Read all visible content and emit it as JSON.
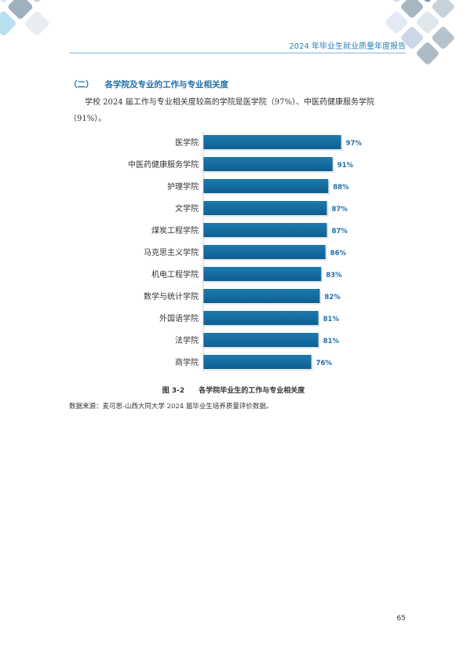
{
  "header": {
    "title": "2024 年毕业生就业质量年度报告"
  },
  "section": {
    "number": "（二）",
    "title": "各学院及专业的工作与专业相关度"
  },
  "paragraph": "学校 2024 届工作与专业相关度较高的学院是医学院（97%）、中医药健康服务学院（91%）。",
  "figure": {
    "number": "图 3-2",
    "caption": "各学院毕业生的工作与专业相关度"
  },
  "source": "数据来源：麦可思-山西大同大学 2024 届毕业生培养质量评价数据。",
  "page_number": "65",
  "colors": {
    "bar": "#176fa3",
    "accent": "#2d7fb4"
  },
  "chart_data": {
    "type": "bar",
    "orientation": "horizontal",
    "title": "",
    "xlabel": "",
    "ylabel": "",
    "xlim": [
      0,
      100
    ],
    "value_format": "percent",
    "categories": [
      "医学院",
      "中医药健康服务学院",
      "护理学院",
      "文学院",
      "煤炭工程学院",
      "马克思主义学院",
      "机电工程学院",
      "数学与统计学院",
      "外国语学院",
      "法学院",
      "商学院"
    ],
    "series": [
      {
        "values": [
          97,
          91,
          88,
          87,
          87,
          86,
          83,
          82,
          81,
          81,
          76
        ]
      }
    ],
    "grid": false,
    "legend": "none"
  }
}
